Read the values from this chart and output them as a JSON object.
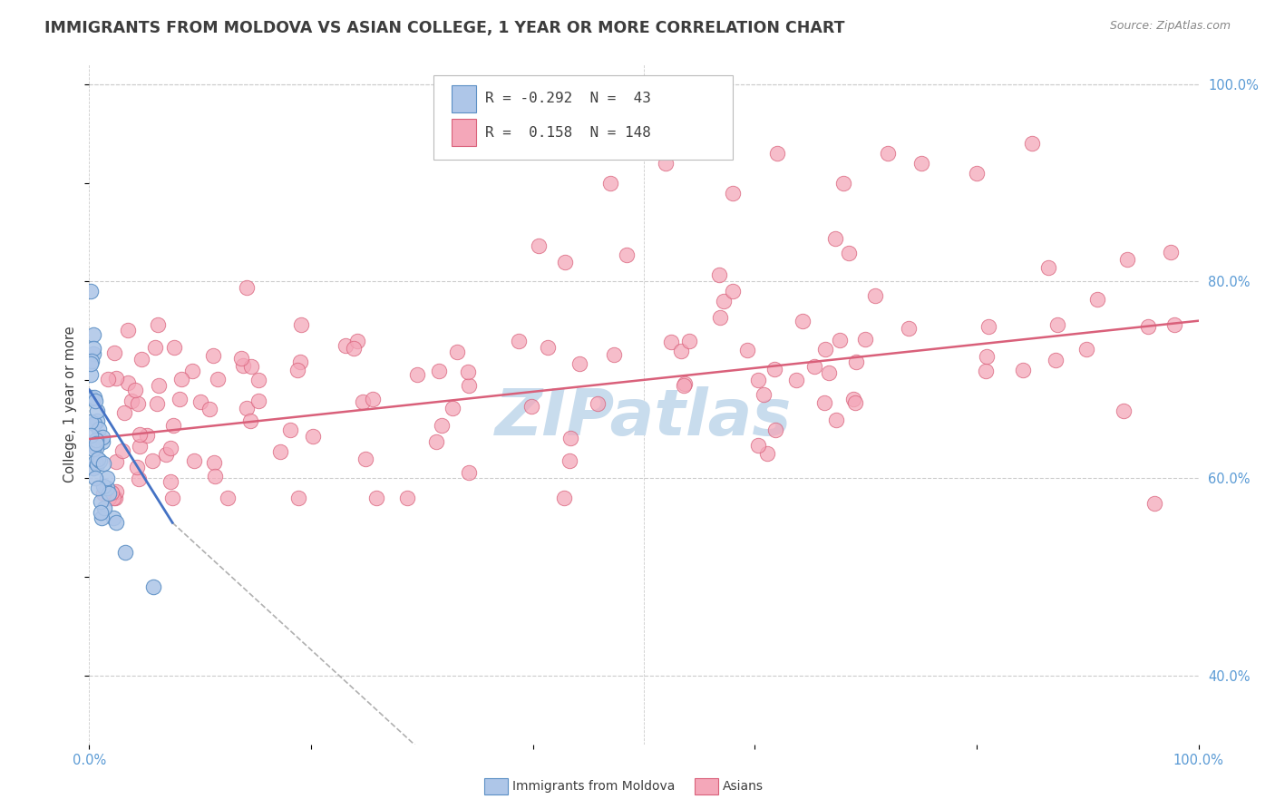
{
  "title": "IMMIGRANTS FROM MOLDOVA VS ASIAN COLLEGE, 1 YEAR OR MORE CORRELATION CHART",
  "source": "Source: ZipAtlas.com",
  "ylabel": "College, 1 year or more",
  "xlim": [
    0.0,
    1.0
  ],
  "ylim": [
    0.0,
    1.0
  ],
  "plot_ylim": [
    0.33,
    1.02
  ],
  "right_yticks": [
    0.4,
    0.6,
    0.8,
    1.0
  ],
  "right_yticklabels": [
    "40.0%",
    "60.0%",
    "80.0%",
    "100.0%"
  ],
  "xtick_positions": [
    0.0,
    1.0
  ],
  "xtick_labels": [
    "0.0%",
    "100.0%"
  ],
  "r_blue": -0.292,
  "n_blue": 43,
  "r_pink": 0.158,
  "n_pink": 148,
  "watermark": "ZIPatlas",
  "watermark_color": "#c8dced",
  "background_color": "#ffffff",
  "grid_color": "#cccccc",
  "title_color": "#3d3d3d",
  "axis_label_color": "#5b9bd5",
  "blue_dot_color": "#aec6e8",
  "blue_dot_edge": "#5b8fc4",
  "pink_dot_color": "#f4a7b9",
  "pink_dot_edge": "#d9607a",
  "blue_line_color": "#4472c4",
  "pink_line_color": "#d9607a",
  "dashed_line_color": "#b0b0b0",
  "blue_line_x": [
    0.0,
    0.075
  ],
  "blue_line_y": [
    0.69,
    0.555
  ],
  "dash_line_x": [
    0.075,
    0.38
  ],
  "dash_line_y": [
    0.555,
    0.24
  ],
  "pink_line_x": [
    0.0,
    1.0
  ],
  "pink_line_y": [
    0.64,
    0.76
  ]
}
